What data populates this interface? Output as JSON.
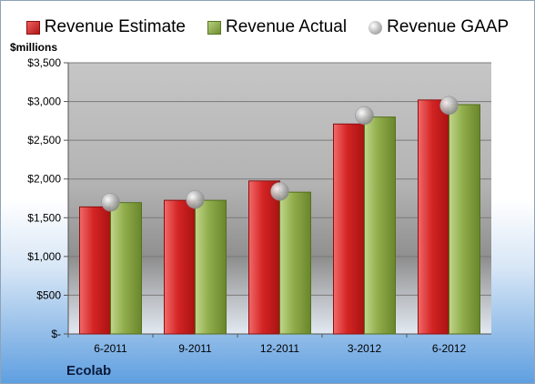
{
  "chart_data": {
    "type": "bar",
    "unit_label": "$millions",
    "company": "Ecolab",
    "categories": [
      "6-2011",
      "9-2011",
      "12-2011",
      "3-2012",
      "6-2012"
    ],
    "series": [
      {
        "name": "Revenue Estimate",
        "kind": "bar",
        "color": "#d42424",
        "values": [
          1640,
          1725,
          1975,
          2710,
          3020
        ]
      },
      {
        "name": "Revenue Actual",
        "kind": "bar",
        "color": "#8fac4a",
        "values": [
          1695,
          1725,
          1830,
          2800,
          2960
        ]
      },
      {
        "name": "Revenue GAAP",
        "kind": "marker",
        "color": "#b0b0b0",
        "values": [
          1700,
          1735,
          1840,
          2820,
          2950
        ]
      }
    ],
    "ylim": [
      0,
      3500
    ],
    "y_ticks": [
      0,
      500,
      1000,
      1500,
      2000,
      2500,
      3000,
      3500
    ],
    "y_tick_labels": [
      "$-",
      "$500",
      "$1,000",
      "$1,500",
      "$2,000",
      "$2,500",
      "$3,000",
      "$3,500"
    ],
    "grid": true,
    "legend_position": "top"
  }
}
